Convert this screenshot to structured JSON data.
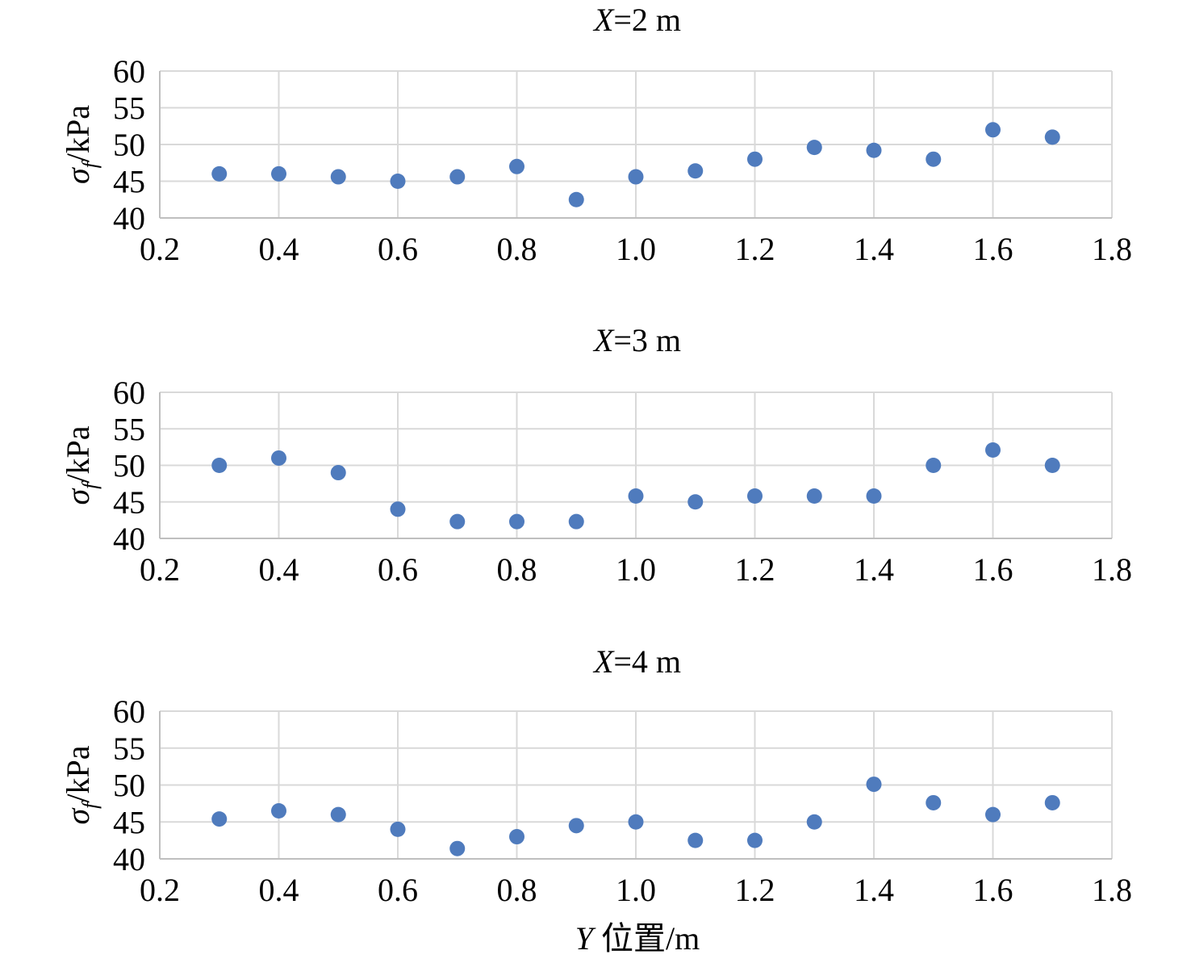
{
  "chart_data": [
    {
      "type": "scatter",
      "title_var": "X",
      "title_rest": "=2 m",
      "ylabel_main": "σ",
      "ylabel_sub": "f",
      "ylabel_unit": "/kPa",
      "xlim": [
        0.2,
        1.8
      ],
      "ylim": [
        40,
        60
      ],
      "xticks": [
        "0.2",
        "0.4",
        "0.6",
        "0.8",
        "1.0",
        "1.2",
        "1.4",
        "1.6",
        "1.8"
      ],
      "yticks": [
        "40",
        "45",
        "50",
        "55",
        "60"
      ],
      "grid": true,
      "x": [
        0.3,
        0.4,
        0.5,
        0.6,
        0.7,
        0.8,
        0.9,
        1.0,
        1.1,
        1.2,
        1.3,
        1.4,
        1.5,
        1.6,
        1.7
      ],
      "y": [
        46,
        46,
        45.6,
        45,
        45.6,
        47,
        42.5,
        45.6,
        46.4,
        48,
        49.6,
        49.2,
        48,
        52,
        51
      ]
    },
    {
      "type": "scatter",
      "title_var": "X",
      "title_rest": "=3 m",
      "ylabel_main": "σ",
      "ylabel_sub": "f",
      "ylabel_unit": "/kPa",
      "xlim": [
        0.2,
        1.8
      ],
      "ylim": [
        40,
        60
      ],
      "xticks": [
        "0.2",
        "0.4",
        "0.6",
        "0.8",
        "1.0",
        "1.2",
        "1.4",
        "1.6",
        "1.8"
      ],
      "yticks": [
        "40",
        "45",
        "50",
        "55",
        "60"
      ],
      "grid": true,
      "x": [
        0.3,
        0.4,
        0.5,
        0.6,
        0.7,
        0.8,
        0.9,
        1.0,
        1.1,
        1.2,
        1.3,
        1.4,
        1.5,
        1.6,
        1.7
      ],
      "y": [
        50,
        51,
        49,
        44,
        42.3,
        42.3,
        42.3,
        45.8,
        45,
        45.8,
        45.8,
        45.8,
        50,
        52.1,
        50
      ]
    },
    {
      "type": "scatter",
      "title_var": "X",
      "title_rest": "=4 m",
      "ylabel_main": "σ",
      "ylabel_sub": "f",
      "ylabel_unit": "/kPa",
      "xlim": [
        0.2,
        1.8
      ],
      "ylim": [
        40,
        60
      ],
      "xticks": [
        "0.2",
        "0.4",
        "0.6",
        "0.8",
        "1.0",
        "1.2",
        "1.4",
        "1.6",
        "1.8"
      ],
      "yticks": [
        "40",
        "45",
        "50",
        "55",
        "60"
      ],
      "grid": true,
      "x": [
        0.3,
        0.4,
        0.5,
        0.6,
        0.7,
        0.8,
        0.9,
        1.0,
        1.1,
        1.2,
        1.3,
        1.4,
        1.5,
        1.6,
        1.7
      ],
      "y": [
        45.4,
        46.5,
        46,
        44,
        41.4,
        43,
        44.5,
        45,
        42.5,
        42.5,
        45,
        50.1,
        47.6,
        46,
        47.6
      ]
    }
  ],
  "xlabel": {
    "var": "Y",
    "rest": " 位置/m"
  },
  "colors": {
    "marker": "#4f7bbd",
    "grid": "#d9d9d9",
    "axis": "#bfbfbf"
  }
}
